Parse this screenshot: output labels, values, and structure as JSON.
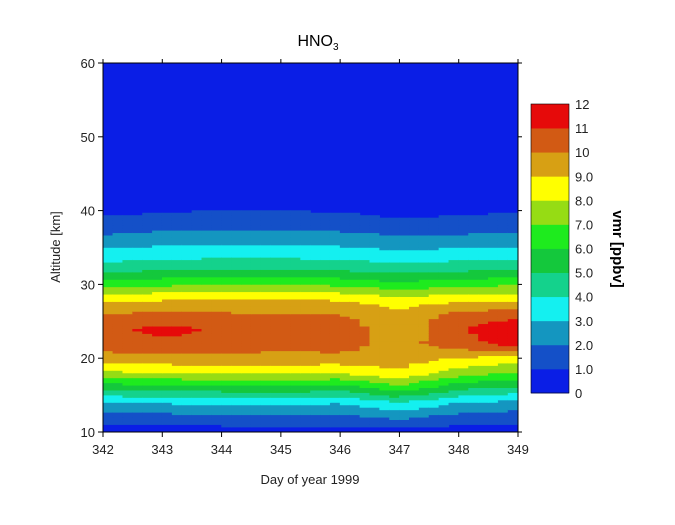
{
  "chart_data": {
    "type": "heatmap",
    "subtype": "filled-contour",
    "title_main": "HNO",
    "title_sub": "3",
    "xlabel": "Day of year 1999",
    "ylabel": "Altitude [km]",
    "colorbar_label": "vmr [ppbv]",
    "xlim": [
      342,
      349
    ],
    "ylim": [
      10,
      60
    ],
    "x_ticks": [
      "342",
      "343",
      "344",
      "345",
      "346",
      "347",
      "348",
      "349"
    ],
    "y_ticks": [
      "10",
      "20",
      "30",
      "40",
      "50",
      "60"
    ],
    "levels": [
      0,
      1,
      2,
      3,
      4,
      5,
      6,
      7,
      8,
      9,
      10,
      11,
      12
    ],
    "level_labels": [
      "0",
      "1.0",
      "2.0",
      "3.0",
      "4.0",
      "5.0",
      "6.0",
      "7.0",
      "8.0",
      "9.0",
      "10",
      "11",
      "12"
    ],
    "colors": [
      "#0a1ee6",
      "#1450c8",
      "#1496c0",
      "#14f0f0",
      "#14d28c",
      "#14c83c",
      "#1eeb1e",
      "#96dc14",
      "#ffff00",
      "#d7a014",
      "#d25a14",
      "#e60a0a"
    ],
    "x": [
      342,
      343,
      344,
      345,
      346,
      347,
      348,
      349
    ],
    "altitudes": [
      10,
      12,
      14,
      16,
      18,
      20,
      22,
      24,
      26,
      28,
      30,
      32,
      34,
      36,
      38,
      40,
      42,
      44,
      46,
      48,
      50,
      52,
      54,
      56,
      58,
      60
    ],
    "vmr": [
      [
        0.5,
        0.5,
        0.5,
        0.5,
        0.5,
        0.5,
        0.5,
        0.5
      ],
      [
        1.5,
        1.6,
        1.7,
        1.8,
        1.7,
        2.2,
        1.6,
        1.4
      ],
      [
        3.0,
        3.1,
        3.2,
        3.3,
        3.1,
        4.0,
        3.0,
        2.7
      ],
      [
        5.3,
        5.5,
        5.6,
        5.7,
        5.5,
        6.6,
        5.3,
        4.8
      ],
      [
        7.8,
        8.0,
        8.1,
        8.2,
        8.0,
        8.9,
        7.5,
        6.9
      ],
      [
        9.5,
        9.7,
        9.8,
        9.6,
        9.7,
        9.4,
        9.0,
        8.4
      ],
      [
        10.6,
        10.8,
        10.6,
        10.4,
        10.5,
        9.6,
        10.6,
        11.5
      ],
      [
        10.7,
        11.3,
        10.9,
        10.5,
        10.6,
        9.3,
        10.8,
        11.9
      ],
      [
        10.0,
        10.2,
        10.1,
        10.0,
        10.0,
        9.4,
        10.3,
        10.5
      ],
      [
        8.7,
        8.9,
        9.0,
        9.0,
        8.9,
        8.3,
        8.7,
        8.8
      ],
      [
        6.6,
        6.8,
        6.9,
        6.9,
        6.8,
        6.3,
        6.7,
        6.9
      ],
      [
        4.7,
        4.9,
        5.0,
        5.0,
        4.9,
        4.6,
        4.8,
        5.0
      ],
      [
        3.4,
        3.6,
        3.7,
        3.7,
        3.6,
        3.3,
        3.5,
        3.6
      ],
      [
        2.4,
        2.6,
        2.7,
        2.7,
        2.6,
        2.3,
        2.4,
        2.5
      ],
      [
        1.4,
        1.6,
        1.7,
        1.7,
        1.6,
        1.3,
        1.4,
        1.5
      ],
      [
        0.7,
        0.9,
        1.0,
        1.0,
        0.9,
        0.6,
        0.8,
        0.9
      ],
      [
        0.35,
        0.4,
        0.5,
        0.5,
        0.4,
        0.3,
        0.35,
        0.4
      ],
      [
        0.2,
        0.25,
        0.3,
        0.3,
        0.25,
        0.18,
        0.2,
        0.25
      ],
      [
        0.12,
        0.15,
        0.2,
        0.2,
        0.15,
        0.1,
        0.12,
        0.15
      ],
      [
        0.08,
        0.1,
        0.12,
        0.12,
        0.1,
        0.07,
        0.08,
        0.1
      ],
      [
        0.05,
        0.07,
        0.1,
        0.1,
        0.07,
        0.05,
        0.05,
        0.07
      ],
      [
        0.04,
        0.05,
        0.07,
        0.07,
        0.05,
        0.04,
        0.04,
        0.05
      ],
      [
        0.03,
        0.04,
        0.05,
        0.05,
        0.04,
        0.03,
        0.03,
        0.04
      ],
      [
        0.02,
        0.03,
        0.04,
        0.04,
        0.03,
        0.02,
        0.02,
        0.03
      ],
      [
        0.02,
        0.02,
        0.03,
        0.03,
        0.02,
        0.02,
        0.02,
        0.02
      ],
      [
        0.01,
        0.02,
        0.02,
        0.02,
        0.02,
        0.01,
        0.01,
        0.02
      ]
    ],
    "legend_placement": "right",
    "grid": false
  }
}
